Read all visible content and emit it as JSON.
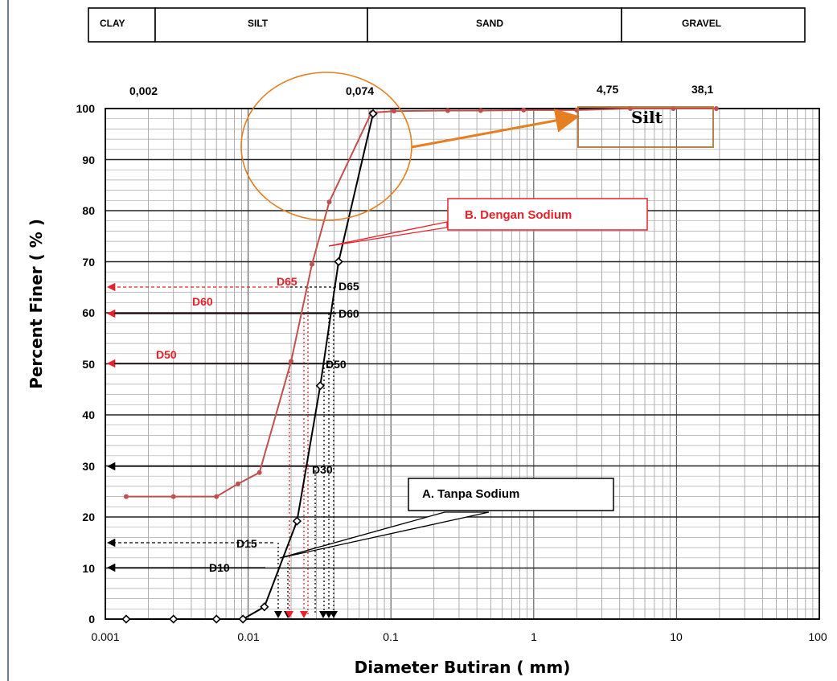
{
  "soil_bands": [
    "CLAY",
    "SILT",
    "SAND",
    "GRAVEL"
  ],
  "sieve_labels": [
    "0,002",
    "0,074",
    "4,75",
    "38,1"
  ],
  "callouts": {
    "silt_box": "Silt",
    "with_sodium": "B. Dengan Sodium",
    "without_sodium": "A. Tanpa Sodium"
  },
  "d_labels": {
    "red": [
      "D65",
      "D60",
      "D50"
    ],
    "black": [
      "D65",
      "D60",
      "D50",
      "D30",
      "D15",
      "D10"
    ]
  },
  "colors": {
    "with_sodium": "#c0504d",
    "without_sodium": "#000000",
    "annotation_red": "#e8202a",
    "highlight_orange": "#e67e22"
  },
  "chart_data": {
    "type": "line",
    "xlabel": "Diameter Butiran ( mm)",
    "ylabel": "Percent Finer ( % )",
    "xscale": "log",
    "xlim": [
      0.001,
      100
    ],
    "ylim": [
      0,
      100
    ],
    "x_ticks": [
      "0.001",
      "0.01",
      "0.1",
      "1",
      "10",
      "100"
    ],
    "y_ticks": [
      "0",
      "10",
      "20",
      "30",
      "40",
      "50",
      "60",
      "70",
      "80",
      "90",
      "100"
    ],
    "grid": true,
    "series": [
      {
        "name": "B. Dengan Sodium",
        "color": "#c0504d",
        "points": [
          [
            0.0014,
            24
          ],
          [
            0.003,
            24
          ],
          [
            0.006,
            24
          ],
          [
            0.0085,
            26.5
          ],
          [
            0.012,
            28.7
          ],
          [
            0.02,
            50.5
          ],
          [
            0.028,
            69.5
          ],
          [
            0.037,
            81.7
          ],
          [
            0.073,
            99.2
          ],
          [
            0.105,
            99.5
          ],
          [
            0.25,
            99.6
          ],
          [
            0.425,
            99.6
          ],
          [
            0.85,
            99.7
          ],
          [
            2.0,
            99.7
          ],
          [
            4.75,
            100
          ],
          [
            9.5,
            100
          ],
          [
            19,
            100
          ]
        ]
      },
      {
        "name": "A. Tanpa Sodium",
        "color": "#000000",
        "points": [
          [
            0.0014,
            0
          ],
          [
            0.003,
            0
          ],
          [
            0.006,
            0
          ],
          [
            0.0092,
            0
          ],
          [
            0.013,
            2.4
          ],
          [
            0.022,
            19.2
          ],
          [
            0.032,
            45.7
          ],
          [
            0.043,
            70
          ],
          [
            0.075,
            99
          ]
        ]
      }
    ]
  }
}
